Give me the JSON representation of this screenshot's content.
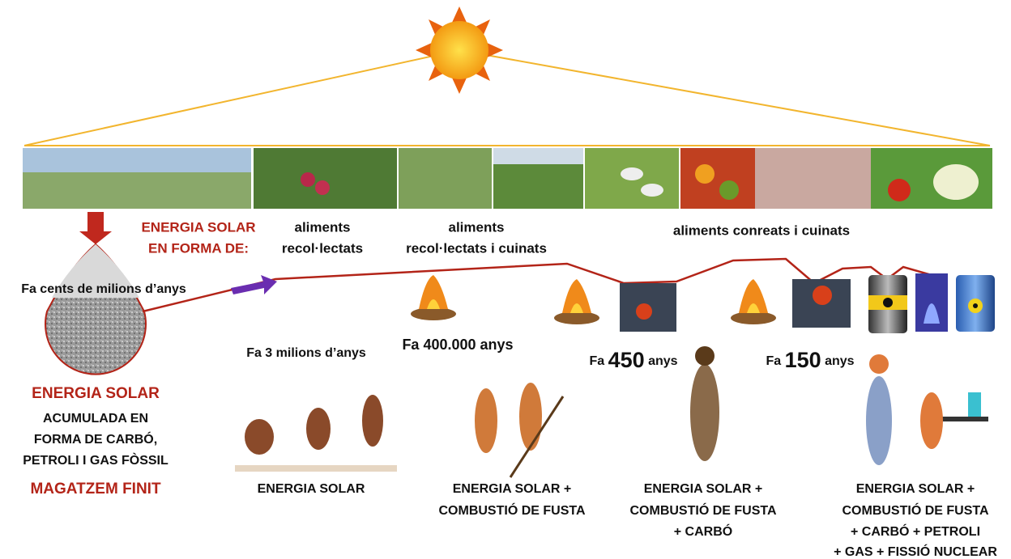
{
  "header": {
    "lines": [
      "ENERGIA SOLAR",
      "EN FORMA DE:"
    ]
  },
  "foods": [
    {
      "lines": [
        "aliments",
        "recol·lectats"
      ]
    },
    {
      "lines": [
        "aliments",
        "recol·lectats i cuinats"
      ]
    },
    {
      "lines": [
        "aliments conreats i cuinats"
      ]
    }
  ],
  "fossil": {
    "age": "Fa cents de milions d’anys",
    "title": "ENERGIA SOLAR",
    "lines": [
      "ACUMULADA EN",
      "FORMA DE CARBÓ,",
      "PETROLI I GAS FÒSSIL"
    ],
    "note": "MAGATZEM FINIT"
  },
  "eras": [
    {
      "time": "Fa 3 milions d’anys",
      "caption": [
        "ENERGIA SOLAR"
      ]
    },
    {
      "time": "Fa 400.000 anys",
      "caption": [
        "ENERGIA SOLAR +",
        "COMBUSTIÓ DE FUSTA"
      ]
    },
    {
      "time": {
        "prefix": "Fa",
        "number": "450",
        "suffix": "anys"
      },
      "caption": [
        "ENERGIA SOLAR +",
        "COMBUSTIÓ DE FUSTA",
        "+ CARBÓ"
      ]
    },
    {
      "time": {
        "prefix": "Fa",
        "number": "150",
        "suffix": "anys"
      },
      "caption": [
        "ENERGIA SOLAR +",
        "COMBUSTIÓ DE FUSTA",
        "+ CARBÓ + PETROLI",
        "+ GAS + FISSIÓ NUCLEAR"
      ]
    }
  ]
}
